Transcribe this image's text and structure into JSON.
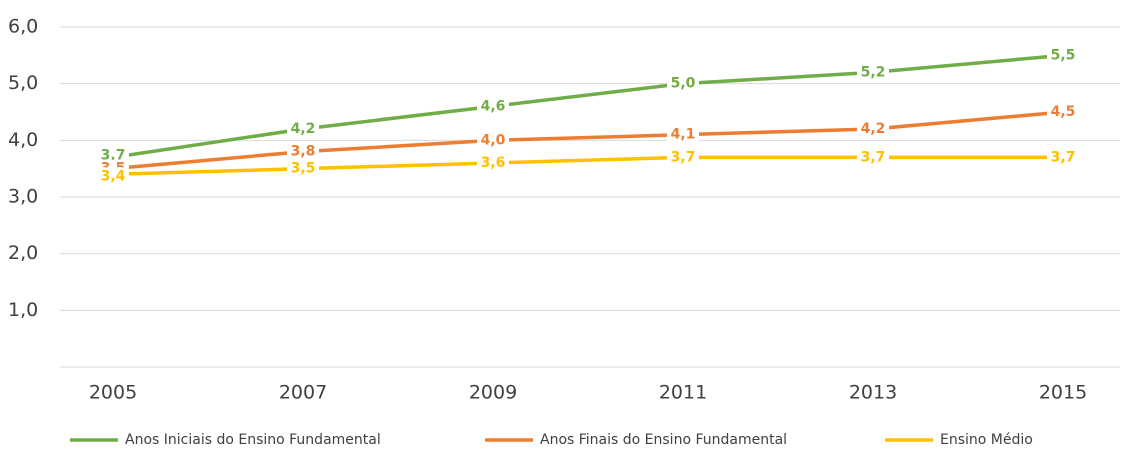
{
  "chart_data": {
    "type": "line",
    "categories": [
      "2005",
      "2007",
      "2009",
      "2011",
      "2013",
      "2015"
    ],
    "series": [
      {
        "name": "Anos Iniciais do Ensino Fundamental",
        "color": "#70ad47",
        "values": [
          3.7,
          4.2,
          4.6,
          5.0,
          5.2,
          5.5
        ],
        "value_labels": [
          "3,7",
          "4,2",
          "4,6",
          "5,0",
          "5,2",
          "5,5"
        ]
      },
      {
        "name": "Anos Finais do Ensino Fundamental",
        "color": "#ed7d31",
        "values": [
          3.5,
          3.8,
          4.0,
          4.1,
          4.2,
          4.5
        ],
        "value_labels": [
          "3,5",
          "3,8",
          "4,0",
          "4,1",
          "4,2",
          "4,5"
        ]
      },
      {
        "name": "Ensino Médio",
        "color": "#ffc000",
        "values": [
          3.4,
          3.5,
          3.6,
          3.7,
          3.7,
          3.7
        ],
        "value_labels": [
          "3,4",
          "3,5",
          "3,6",
          "3,7",
          "3,7",
          "3,7"
        ]
      }
    ],
    "ylim": [
      0,
      6
    ],
    "yticks": [
      {
        "value": 1,
        "label": "1,0"
      },
      {
        "value": 2,
        "label": "2,0"
      },
      {
        "value": 3,
        "label": "3,0"
      },
      {
        "value": 4,
        "label": "4,0"
      },
      {
        "value": 5,
        "label": "5,0"
      },
      {
        "value": 6,
        "label": "6,0"
      }
    ],
    "grid": true,
    "legend": "bottom"
  }
}
